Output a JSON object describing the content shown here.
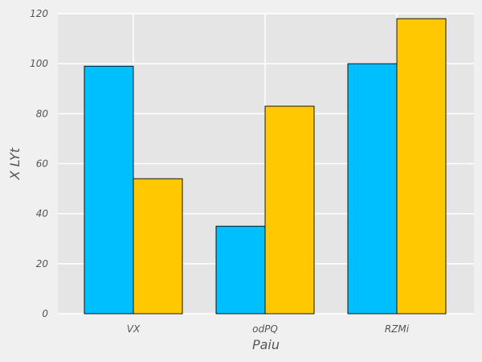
{
  "chart_data": {
    "type": "bar",
    "title": "",
    "xlabel": "Paiu",
    "ylabel": "X LYt",
    "categories": [
      "VX",
      "odPQ",
      "RZMi"
    ],
    "series": [
      {
        "values": [
          99,
          35,
          100
        ],
        "color": "#00bfff"
      },
      {
        "values": [
          54,
          83,
          118
        ],
        "color": "#ffc800"
      }
    ],
    "ylim": [
      0,
      120
    ],
    "yticks": [
      0,
      20,
      40,
      60,
      80,
      100,
      120
    ],
    "grid": true,
    "plot_background": "#e5e5e5",
    "figure_background": "#f0f0f0"
  }
}
